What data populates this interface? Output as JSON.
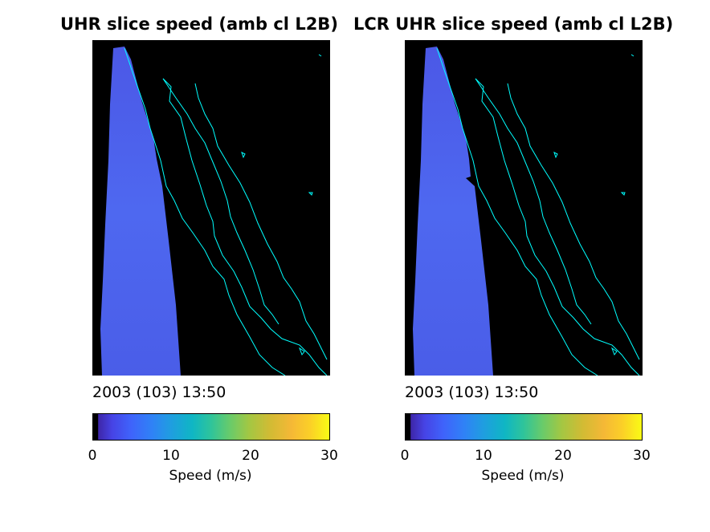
{
  "chart_data": [
    {
      "type": "heatmap",
      "title": "UHR slice speed (amb cl L2B)",
      "timestamp": "2003 (103) 13:50",
      "colorbar": {
        "label": "Speed (m/s)",
        "range": [
          0,
          30
        ],
        "ticks": [
          "0",
          "10",
          "20",
          "30"
        ],
        "colormap": "parula"
      },
      "field_color": "#4a5fe8",
      "coastline_color": "#00ffff",
      "background_color": "#000000"
    },
    {
      "type": "heatmap",
      "title": "LCR UHR slice speed (amb cl L2B)",
      "timestamp": "2003 (103) 13:50",
      "colorbar": {
        "label": "Speed (m/s)",
        "range": [
          0,
          30
        ],
        "ticks": [
          "0",
          "10",
          "20",
          "30"
        ],
        "colormap": "parula"
      },
      "field_color": "#4a5fe8",
      "coastline_color": "#00ffff",
      "background_color": "#000000"
    }
  ]
}
